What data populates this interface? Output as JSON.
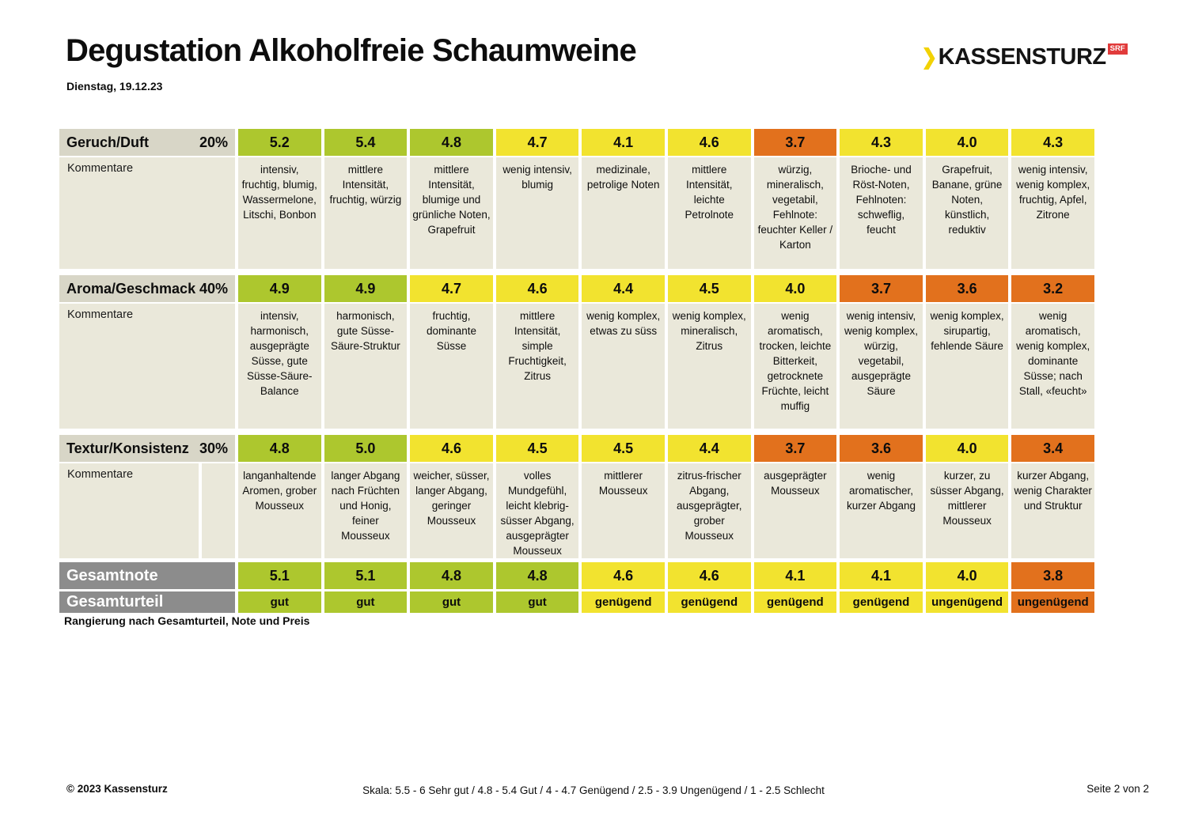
{
  "header": {
    "title": "Degustation Alkoholfreie Schaumweine",
    "date": "Dienstag, 19.12.23",
    "logo": {
      "chevron": "❯",
      "text": "KASSENSTURZ",
      "badge": "SRF"
    }
  },
  "colors": {
    "green": "#adc72e",
    "yellow": "#f2e32f",
    "orange": "#e2711d",
    "beige": "#eae8da",
    "headbeige": "#d8d6c7",
    "gray": "#8c8c8c",
    "srfred": "#e13b3b",
    "logoyellow": "#f2d204"
  },
  "table": {
    "kommentare_label": "Kommentare",
    "sections": [
      {
        "label": "Geruch/Duft",
        "weight": "20%",
        "cells": [
          {
            "score": "5.2",
            "level": "green",
            "comment": "intensiv, fruchtig, blumig, Wassermelone, Litschi, Bonbon"
          },
          {
            "score": "5.4",
            "level": "green",
            "comment": "mittlere Intensität, fruchtig, würzig"
          },
          {
            "score": "4.8",
            "level": "green",
            "comment": "mittlere Intensität, blumige und grünliche Noten, Grapefruit"
          },
          {
            "score": "4.7",
            "level": "yellow",
            "comment": "wenig intensiv, blumig"
          },
          {
            "score": "4.1",
            "level": "yellow",
            "comment": "medizinale, petrolige Noten"
          },
          {
            "score": "4.6",
            "level": "yellow",
            "comment": "mittlere Intensität, leichte Petrolnote"
          },
          {
            "score": "3.7",
            "level": "orange",
            "comment": "würzig, mineralisch, vegetabil, Fehlnote: feuchter Keller / Karton"
          },
          {
            "score": "4.3",
            "level": "yellow",
            "comment": "Brioche- und Röst-Noten, Fehlnoten: schweflig, feucht"
          },
          {
            "score": "4.0",
            "level": "yellow",
            "comment": "Grapefruit, Banane, grüne Noten, künstlich, reduktiv"
          },
          {
            "score": "4.3",
            "level": "yellow",
            "comment": "wenig intensiv, wenig komplex, fruchtig, Apfel, Zitrone"
          }
        ]
      },
      {
        "label": "Aroma/Geschmack",
        "weight": "40%",
        "cells": [
          {
            "score": "4.9",
            "level": "green",
            "comment": "intensiv, harmonisch, ausgeprägte Süsse, gute Süsse-Säure-Balance"
          },
          {
            "score": "4.9",
            "level": "green",
            "comment": "harmonisch, gute Süsse-Säure-Struktur"
          },
          {
            "score": "4.7",
            "level": "yellow",
            "comment": "fruchtig, dominante Süsse"
          },
          {
            "score": "4.6",
            "level": "yellow",
            "comment": "mittlere Intensität, simple Fruchtigkeit, Zitrus"
          },
          {
            "score": "4.4",
            "level": "yellow",
            "comment": "wenig komplex, etwas zu süss"
          },
          {
            "score": "4.5",
            "level": "yellow",
            "comment": "wenig komplex, mineralisch, Zitrus"
          },
          {
            "score": "4.0",
            "level": "yellow",
            "comment": "wenig aromatisch, trocken, leichte Bitterkeit, getrocknete Früchte, leicht muffig"
          },
          {
            "score": "3.7",
            "level": "orange",
            "comment": "wenig intensiv, wenig komplex, würzig, vegetabil, ausgeprägte Säure"
          },
          {
            "score": "3.6",
            "level": "orange",
            "comment": "wenig komplex, sirupartig, fehlende Säure"
          },
          {
            "score": "3.2",
            "level": "orange",
            "comment": "wenig aromatisch, wenig komplex, dominante Süsse; nach Stall, «feucht»"
          }
        ]
      },
      {
        "label": "Textur/Konsistenz",
        "weight": "30%",
        "cells": [
          {
            "score": "4.8",
            "level": "green",
            "comment": "langanhaltende Aromen, grober Mousseux"
          },
          {
            "score": "5.0",
            "level": "green",
            "comment": "langer Abgang nach Früchten und Honig, feiner Mousseux"
          },
          {
            "score": "4.6",
            "level": "yellow",
            "comment": "weicher, süsser, langer Abgang, geringer Mousseux"
          },
          {
            "score": "4.5",
            "level": "yellow",
            "comment": "volles Mundgefühl, leicht klebrig-süsser Abgang, ausgeprägter Mousseux"
          },
          {
            "score": "4.5",
            "level": "yellow",
            "comment": "mittlerer Mousseux"
          },
          {
            "score": "4.4",
            "level": "yellow",
            "comment": "zitrus-frischer Abgang, ausgeprägter, grober Mousseux"
          },
          {
            "score": "3.7",
            "level": "orange",
            "comment": "ausgeprägter Mousseux"
          },
          {
            "score": "3.6",
            "level": "orange",
            "comment": "wenig aromatischer, kurzer Abgang"
          },
          {
            "score": "4.0",
            "level": "yellow",
            "comment": "kurzer, zu süsser Abgang, mittlerer Mousseux"
          },
          {
            "score": "3.4",
            "level": "orange",
            "comment": "kurzer Abgang, wenig Charakter und Struktur"
          }
        ]
      }
    ],
    "gesamtnote": {
      "label": "Gesamtnote",
      "cells": [
        {
          "score": "5.1",
          "level": "green"
        },
        {
          "score": "5.1",
          "level": "green"
        },
        {
          "score": "4.8",
          "level": "green"
        },
        {
          "score": "4.8",
          "level": "green"
        },
        {
          "score": "4.6",
          "level": "yellow"
        },
        {
          "score": "4.6",
          "level": "yellow"
        },
        {
          "score": "4.1",
          "level": "yellow"
        },
        {
          "score": "4.1",
          "level": "yellow"
        },
        {
          "score": "4.0",
          "level": "yellow"
        },
        {
          "score": "3.8",
          "level": "orange"
        }
      ]
    },
    "gesamturteil": {
      "label": "Gesamturteil",
      "cells": [
        {
          "text": "gut",
          "level": "green"
        },
        {
          "text": "gut",
          "level": "green"
        },
        {
          "text": "gut",
          "level": "green"
        },
        {
          "text": "gut",
          "level": "green"
        },
        {
          "text": "genügend",
          "level": "yellow"
        },
        {
          "text": "genügend",
          "level": "yellow"
        },
        {
          "text": "genügend",
          "level": "yellow"
        },
        {
          "text": "genügend",
          "level": "yellow"
        },
        {
          "text": "ungenügend",
          "level": "yellow"
        },
        {
          "text": "ungenügend",
          "level": "orange"
        }
      ]
    },
    "footnote": "Rangierung nach Gesamturteil, Note und Preis"
  },
  "footer": {
    "copyright": "© 2023 Kassensturz",
    "scale": "Skala: 5.5 - 6 Sehr gut / 4.8 - 5.4 Gut / 4 - 4.7 Genügend / 2.5 - 3.9 Ungenügend / 1 - 2.5 Schlecht",
    "page": "Seite 2 von 2"
  }
}
